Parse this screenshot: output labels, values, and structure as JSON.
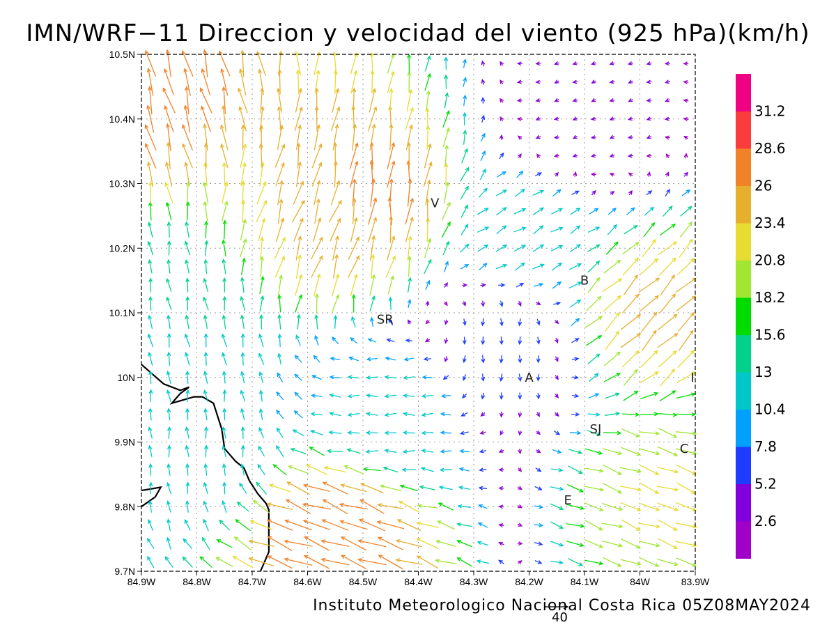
{
  "title": "IMN/WRF−11 Direccion y velocidad del viento (925 hPa)(km/h)",
  "credit": "Instituto Meteorologico Nacional Costa Rica 05Z08MAY2024",
  "reference_vector": {
    "label": "40",
    "value_kmh": 40
  },
  "map": {
    "x_ticks": [
      {
        "lon": -84.9,
        "label": "84.9W"
      },
      {
        "lon": -84.8,
        "label": "84.8W"
      },
      {
        "lon": -84.7,
        "label": "84.7W"
      },
      {
        "lon": -84.6,
        "label": "84.6W"
      },
      {
        "lon": -84.5,
        "label": "84.5W"
      },
      {
        "lon": -84.4,
        "label": "84.4W"
      },
      {
        "lon": -84.3,
        "label": "84.3W"
      },
      {
        "lon": -84.2,
        "label": "84.2W"
      },
      {
        "lon": -84.1,
        "label": "84.1W"
      },
      {
        "lon": -84.0,
        "label": "84W"
      },
      {
        "lon": -83.9,
        "label": "83.9W"
      }
    ],
    "y_ticks": [
      {
        "lat": 10.5,
        "label": "10.5N"
      },
      {
        "lat": 10.4,
        "label": "10.4N"
      },
      {
        "lat": 10.3,
        "label": "10.3N"
      },
      {
        "lat": 10.2,
        "label": "10.2N"
      },
      {
        "lat": 10.1,
        "label": "10.1N"
      },
      {
        "lat": 10.0,
        "label": "10N"
      },
      {
        "lat": 9.9,
        "label": "9.9N"
      },
      {
        "lat": 9.8,
        "label": "9.8N"
      },
      {
        "lat": 9.7,
        "label": "9.7N"
      }
    ],
    "lon_range": [
      -84.9,
      -83.9
    ],
    "lat_range": [
      9.7,
      10.5
    ],
    "grid": true,
    "places": [
      {
        "label": "V",
        "lon": -84.37,
        "lat": 10.27
      },
      {
        "label": "B",
        "lon": -84.1,
        "lat": 10.15
      },
      {
        "label": "SR",
        "lon": -84.46,
        "lat": 10.09
      },
      {
        "label": "A",
        "lon": -84.2,
        "lat": 10.0
      },
      {
        "label": "SJ",
        "lon": -84.08,
        "lat": 9.92
      },
      {
        "label": "C",
        "lon": -83.92,
        "lat": 9.89
      },
      {
        "label": "E",
        "lon": -84.13,
        "lat": 9.81
      },
      {
        "label": "I",
        "lon": -83.905,
        "lat": 10.0
      }
    ],
    "coastline": [
      [
        [
          -84.9,
          10.02
        ],
        [
          -84.86,
          9.99
        ],
        [
          -84.83,
          9.98
        ],
        [
          -84.814,
          9.985
        ],
        [
          -84.83,
          9.975
        ],
        [
          -84.845,
          9.96
        ],
        [
          -84.805,
          9.97
        ],
        [
          -84.79,
          9.97
        ],
        [
          -84.77,
          9.96
        ],
        [
          -84.755,
          9.92
        ],
        [
          -84.75,
          9.89
        ],
        [
          -84.73,
          9.87
        ],
        [
          -84.715,
          9.86
        ],
        [
          -84.705,
          9.84
        ],
        [
          -84.69,
          9.82
        ],
        [
          -84.675,
          9.805
        ],
        [
          -84.67,
          9.795
        ],
        [
          -84.67,
          9.76
        ],
        [
          -84.67,
          9.73
        ],
        [
          -84.685,
          9.7
        ]
      ],
      [
        [
          -84.9,
          9.8
        ],
        [
          -84.875,
          9.815
        ],
        [
          -84.865,
          9.83
        ],
        [
          -84.9,
          9.825
        ]
      ]
    ]
  },
  "colorbar": {
    "colors": [
      "#a000c8",
      "#8200dc",
      "#1e3cff",
      "#00a0ff",
      "#00c8c8",
      "#00d28c",
      "#00dc00",
      "#a0e632",
      "#e6dc32",
      "#e6af2d",
      "#f08228",
      "#fa3c3c",
      "#f00082"
    ],
    "labels": [
      "2.6",
      "5.2",
      "7.8",
      "10.4",
      "13",
      "15.6",
      "18.2",
      "20.8",
      "23.4",
      "26",
      "28.6",
      "31.2"
    ]
  },
  "chart_data": {
    "type": "vector_field",
    "title": "IMN/WRF−11 Direccion y velocidad del viento (925 hPa)(km/h)",
    "x_axis": {
      "range": [
        -84.9,
        -83.9
      ],
      "ticks": [
        "84.9W",
        "84.8W",
        "84.7W",
        "84.6W",
        "84.5W",
        "84.4W",
        "84.3W",
        "84.2W",
        "84.1W",
        "84W",
        "83.9W"
      ]
    },
    "y_axis": {
      "range": [
        9.7,
        10.5
      ],
      "ticks": [
        "10.5N",
        "10.4N",
        "10.3N",
        "10.2N",
        "10.1N",
        "10N",
        "9.9N",
        "9.8N",
        "9.7N"
      ]
    },
    "grid": true,
    "units": "km/h",
    "legend": "colorbar right",
    "sample_vectors": [
      {
        "lon": -84.88,
        "lat": 10.45,
        "dir_to_deg": 345,
        "speed_kmh": 27
      },
      {
        "lon": -84.48,
        "lat": 10.28,
        "dir_to_deg": 5,
        "speed_kmh": 27
      },
      {
        "lon": -84.55,
        "lat": 10.24,
        "dir_to_deg": 20,
        "speed_kmh": 24
      },
      {
        "lon": -84.85,
        "lat": 10.1,
        "dir_to_deg": 350,
        "speed_kmh": 13
      },
      {
        "lon": -84.8,
        "lat": 9.9,
        "dir_to_deg": 355,
        "speed_kmh": 11
      },
      {
        "lon": -84.55,
        "lat": 9.76,
        "dir_to_deg": 290,
        "speed_kmh": 28
      },
      {
        "lon": -84.45,
        "lat": 9.95,
        "dir_to_deg": 270,
        "speed_kmh": 11
      },
      {
        "lon": -84.25,
        "lat": 10.05,
        "dir_to_deg": 180,
        "speed_kmh": 7
      },
      {
        "lon": -84.1,
        "lat": 10.4,
        "dir_to_deg": 250,
        "speed_kmh": 4
      },
      {
        "lon": -83.98,
        "lat": 10.1,
        "dir_to_deg": 45,
        "speed_kmh": 24
      },
      {
        "lon": -83.95,
        "lat": 9.82,
        "dir_to_deg": 110,
        "speed_kmh": 21
      },
      {
        "lon": -84.2,
        "lat": 10.22,
        "dir_to_deg": 60,
        "speed_kmh": 12
      }
    ]
  }
}
